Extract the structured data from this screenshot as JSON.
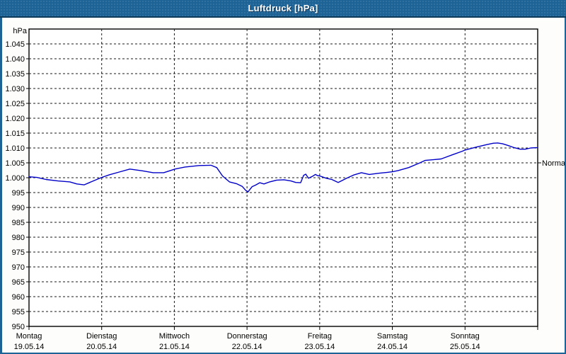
{
  "window": {
    "title": "Luftdruck [hPa]"
  },
  "colors": {
    "titlebar": "#1d6396",
    "titlebar_shadow": "#0c3a5a",
    "frame": "#1d6396",
    "background": "#fdfdfb",
    "plot_background": "#ffffff",
    "grid": "#1a1a1a",
    "axis": "#000000",
    "series": "#0000c8",
    "text": "#000000",
    "title_text": "#ffffff"
  },
  "chart_data": {
    "type": "line",
    "title": "Luftdruck [hPa]",
    "grid": "dashed",
    "legend_position": "none",
    "y_axis": {
      "unit_label": "hPa",
      "min": 950,
      "max": 1050,
      "tick_step": 5,
      "ticks": [
        {
          "value": 1045,
          "label": "1.045"
        },
        {
          "value": 1040,
          "label": "1.040"
        },
        {
          "value": 1035,
          "label": "1.035"
        },
        {
          "value": 1030,
          "label": "1.030"
        },
        {
          "value": 1025,
          "label": "1.025"
        },
        {
          "value": 1020,
          "label": "1.020"
        },
        {
          "value": 1015,
          "label": "1.015"
        },
        {
          "value": 1010,
          "label": "1.010"
        },
        {
          "value": 1005,
          "label": "1.005"
        },
        {
          "value": 1000,
          "label": "1.000"
        },
        {
          "value": 995,
          "label": "995"
        },
        {
          "value": 990,
          "label": "990"
        },
        {
          "value": 985,
          "label": "985"
        },
        {
          "value": 980,
          "label": "980"
        },
        {
          "value": 975,
          "label": "975"
        },
        {
          "value": 970,
          "label": "970"
        },
        {
          "value": 965,
          "label": "965"
        },
        {
          "value": 960,
          "label": "960"
        },
        {
          "value": 955,
          "label": "955"
        },
        {
          "value": 950,
          "label": "950"
        }
      ]
    },
    "x_axis": {
      "span_hours": 168,
      "day_tick_interval_hours": 24,
      "days": [
        {
          "name": "Montag",
          "date": "19.05.14"
        },
        {
          "name": "Dienstag",
          "date": "20.05.14"
        },
        {
          "name": "Mittwoch",
          "date": "21.05.14"
        },
        {
          "name": "Donnerstag",
          "date": "22.05.14"
        },
        {
          "name": "Freitag",
          "date": "23.05.14"
        },
        {
          "name": "Samstag",
          "date": "24.05.14"
        },
        {
          "name": "Sonntag",
          "date": "25.05.14"
        }
      ]
    },
    "right_axis": {
      "label": "Normal",
      "value": 1005
    },
    "series": [
      {
        "name": "Luftdruck",
        "color": "#0000c8",
        "points_hour_hpa": [
          [
            0,
            1000.3
          ],
          [
            2.6,
            1000.1
          ],
          [
            5.6,
            999.4
          ],
          [
            9.6,
            998.9
          ],
          [
            13.5,
            998.6
          ],
          [
            15.8,
            997.9
          ],
          [
            18.2,
            997.6
          ],
          [
            21.2,
            998.9
          ],
          [
            24,
            1000.1
          ],
          [
            26.6,
            1001.0
          ],
          [
            29.8,
            1001.9
          ],
          [
            33.3,
            1002.9
          ],
          [
            37.5,
            1002.3
          ],
          [
            41,
            1001.7
          ],
          [
            44.5,
            1001.7
          ],
          [
            48.2,
            1002.9
          ],
          [
            51.5,
            1003.6
          ],
          [
            56.2,
            1004.1
          ],
          [
            60.1,
            1004.2
          ],
          [
            62,
            1003.4
          ],
          [
            63.9,
            1000.6
          ],
          [
            66.2,
            998.6
          ],
          [
            68.5,
            998.0
          ],
          [
            70.4,
            997.1
          ],
          [
            71.5,
            995.8
          ],
          [
            72.3,
            995.2
          ],
          [
            73.7,
            997.0
          ],
          [
            74.8,
            997.5
          ],
          [
            76.2,
            998.3
          ],
          [
            77.6,
            997.9
          ],
          [
            79.5,
            998.6
          ],
          [
            81.8,
            999.2
          ],
          [
            84.2,
            999.3
          ],
          [
            86.5,
            998.9
          ],
          [
            88.1,
            998.4
          ],
          [
            89.7,
            998.3
          ],
          [
            90.7,
            1000.8
          ],
          [
            91.4,
            1001.2
          ],
          [
            92.3,
            999.8
          ],
          [
            93.5,
            1000.4
          ],
          [
            94.6,
            1001.1
          ],
          [
            95.3,
            1000.7
          ],
          [
            96,
            1000.6
          ],
          [
            98.2,
            999.8
          ],
          [
            100,
            999.4
          ],
          [
            102.1,
            998.4
          ],
          [
            104.9,
            999.8
          ],
          [
            107.2,
            1000.9
          ],
          [
            109.8,
            1001.7
          ],
          [
            112.4,
            1001.1
          ],
          [
            115.5,
            1001.5
          ],
          [
            118.4,
            1001.8
          ],
          [
            120,
            1002.0
          ],
          [
            121.9,
            1002.4
          ],
          [
            125.4,
            1003.4
          ],
          [
            129.1,
            1005.0
          ],
          [
            130.8,
            1005.8
          ],
          [
            133.8,
            1006.1
          ],
          [
            136.1,
            1006.3
          ],
          [
            140.1,
            1007.8
          ],
          [
            143.1,
            1008.9
          ],
          [
            144,
            1009.3
          ],
          [
            147.8,
            1010.3
          ],
          [
            151,
            1011.1
          ],
          [
            153.3,
            1011.6
          ],
          [
            154.8,
            1011.7
          ],
          [
            156.4,
            1011.4
          ],
          [
            158,
            1010.9
          ],
          [
            160.3,
            1010.1
          ],
          [
            162.2,
            1009.6
          ],
          [
            163.9,
            1009.6
          ],
          [
            165.7,
            1010.0
          ],
          [
            167.3,
            1010.1
          ],
          [
            168,
            1010.1
          ]
        ]
      }
    ]
  }
}
